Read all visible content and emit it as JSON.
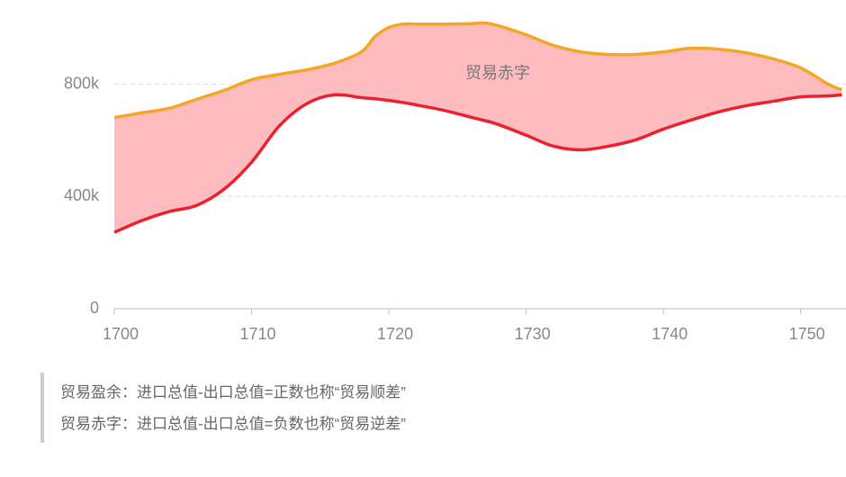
{
  "chart_data": {
    "type": "area-between",
    "x": [
      1700,
      1702,
      1704,
      1706,
      1708,
      1710,
      1712,
      1714,
      1716,
      1718,
      1719,
      1720,
      1721,
      1722,
      1724,
      1726,
      1727,
      1728,
      1730,
      1732,
      1734,
      1736,
      1738,
      1740,
      1742,
      1744,
      1746,
      1748,
      1750,
      1752,
      1753
    ],
    "series": [
      {
        "color": "#f5a623",
        "values": [
          681000,
          698000,
          714000,
          746000,
          778000,
          816000,
          835000,
          851000,
          874000,
          915000,
          970000,
          1002000,
          1014000,
          1014000,
          1014000,
          1016000,
          1018000,
          1008000,
          976000,
          938000,
          915000,
          906000,
          906000,
          915000,
          928000,
          925000,
          912000,
          890000,
          858000,
          800000,
          780000
        ]
      },
      {
        "color": "#e8222f",
        "values": [
          272000,
          314000,
          346000,
          368000,
          426000,
          522000,
          650000,
          730000,
          762000,
          752000,
          748000,
          742000,
          735000,
          726000,
          707000,
          682000,
          670000,
          656000,
          618000,
          579000,
          566000,
          579000,
          602000,
          640000,
          672000,
          701000,
          723000,
          739000,
          755000,
          758000,
          762000
        ]
      }
    ],
    "fill_color": "#ffbcc0",
    "annotation": "贸易赤字",
    "xlim": [
      1700,
      1753.3
    ],
    "xticks": [
      1700,
      1710,
      1720,
      1730,
      1740,
      1750
    ],
    "ylim": [
      0,
      1100000
    ],
    "yticks": [
      0,
      {
        "value": 400000,
        "label": "400k"
      },
      {
        "value": 800000,
        "label": "800k"
      }
    ],
    "grid": true
  },
  "notes": [
    "贸易盈余：进口总值-出口总值=正数也称“贸易顺差”",
    "贸易赤字：进口总值-出口总值=负数也称“贸易逆差”"
  ]
}
